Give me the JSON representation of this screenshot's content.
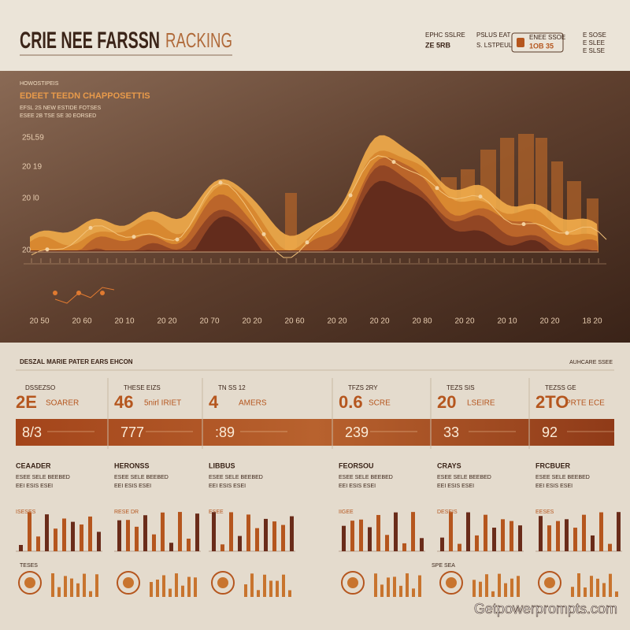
{
  "header": {
    "title": "CRIE NEE FARSSN",
    "title_suffix": "RACKING",
    "meta": [
      "EPHC SSLRE",
      "ZE 5RB",
      "PSLUS EAT",
      "S. LSTPEUL",
      "ENEE SSOE",
      "1OB 35",
      "E SOSE",
      "E SLEE",
      "E SLSE"
    ]
  },
  "trend_panel": {
    "kicker": "HOWOSTIPEIS",
    "title": "EDEET TEEDN CHAPPOSETTIS",
    "notes": [
      "EFSL 2S NEW ESTIDE FOTSES",
      "ESEE 2B TSE SE 30 EORSED"
    ],
    "y_labels": [
      "25L59",
      "20 19",
      "20 l0",
      "20"
    ],
    "x_labels": [
      "20 50",
      "20 60",
      "20 10",
      "20 20",
      "20 70",
      "20 20",
      "20 60",
      "20 20",
      "20 20",
      "20 80",
      "20 20",
      "20 10",
      "20 20",
      "18 20"
    ]
  },
  "summary": {
    "title": "DESZAL MARIE PATER EARS EHCON",
    "aside": "AUHCARE SSEE",
    "cards": [
      {
        "label": "DSSEZSO",
        "value": "2E",
        "unit": "SOARER",
        "band": "8/3"
      },
      {
        "label": "THESE EIZS",
        "value": "46",
        "unit": "5nirl IRIET",
        "band": "777"
      },
      {
        "label": "TN SS 12",
        "value": "4",
        "unit": "AMERS",
        "band": ":89"
      },
      {
        "label": "TFZS 2RY",
        "value": "0.6",
        "unit": "SCRE",
        "band": "239"
      },
      {
        "label": "TEZS SIS",
        "value": "20",
        "unit": "LSEIRE",
        "band": "33"
      },
      {
        "label": "TEZSS GE",
        "value": "2TO",
        "unit": "PRTE ECE",
        "band": "92"
      }
    ]
  },
  "panels": [
    {
      "title": "CEAADER",
      "lines": [
        "ESEE SELE BEEBED",
        "EEI ESIS ESEI"
      ],
      "chart_label": "ISESES"
    },
    {
      "title": "HERONSS",
      "lines": [
        "ESEE SELE BEEBED",
        "EEI ESIS ESEI"
      ],
      "chart_label": "RESE DR"
    },
    {
      "title": "LIBBUS",
      "lines": [
        "ESEE SELE BEEBED",
        "EEI ESIS ESEI"
      ],
      "chart_label": "ESEE"
    },
    {
      "title": "FEORSOU",
      "lines": [
        "ESEE SELE BEEBED",
        "EEI ESIS ESEI"
      ],
      "chart_label": "IIGEE"
    },
    {
      "title": "CRAYS",
      "lines": [
        "ESEE SELE BEEBED",
        "EEI ESIS ESEI"
      ],
      "chart_label": "DESEIS"
    },
    {
      "title": "FRCBUER",
      "lines": [
        "ESEE SELE BEEBED",
        "EEI ESIS ESEI"
      ],
      "chart_label": "EESES"
    }
  ],
  "bottom_labels": [
    "TESES",
    "SPE SEA"
  ],
  "watermark": "Getpowerprompts.com"
}
